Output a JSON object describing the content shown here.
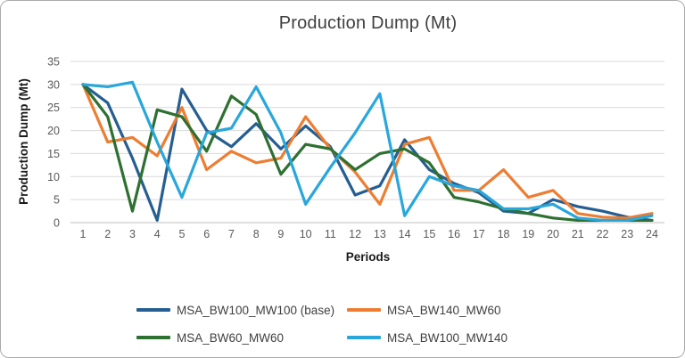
{
  "title": "Production Dump (Mt)",
  "x_axis": {
    "title": "Periods"
  },
  "y_axis": {
    "title": "Production Dump (Mt)"
  },
  "colors": {
    "gridline": "#d9d9d9",
    "axis_line": "#bfbfbf",
    "tick_label": "#595959"
  },
  "chart_data": {
    "type": "line",
    "title": "Production Dump (Mt)",
    "xlabel": "Periods",
    "ylabel": "Production Dump (Mt)",
    "x": [
      1,
      2,
      3,
      4,
      5,
      6,
      7,
      8,
      9,
      10,
      11,
      12,
      13,
      14,
      15,
      16,
      17,
      18,
      19,
      20,
      21,
      22,
      23,
      24
    ],
    "y_ticks": [
      0,
      5,
      10,
      15,
      20,
      25,
      30,
      35
    ],
    "ylim": [
      0,
      35
    ],
    "grid": true,
    "legend_position": "bottom",
    "series": [
      {
        "name": "MSA_BW100_MW100 (base)",
        "color": "#255e91",
        "values": [
          30,
          26,
          14,
          0.5,
          29,
          20,
          16.5,
          21.5,
          16,
          21,
          16.5,
          6,
          8,
          18,
          11.5,
          8.5,
          6.5,
          2.5,
          2,
          5,
          3.5,
          2.5,
          1.2,
          0.5
        ]
      },
      {
        "name": "MSA_BW140_MW60",
        "color": "#ed7d31",
        "values": [
          30,
          17.5,
          18.5,
          14.5,
          25,
          11.5,
          15.5,
          13,
          14,
          23,
          16,
          11,
          4,
          17,
          18.5,
          7,
          7,
          11.5,
          5.5,
          7,
          2,
          1.2,
          1,
          2
        ]
      },
      {
        "name": "MSA_BW60_MW60",
        "color": "#2e7031",
        "values": [
          30,
          23,
          2.5,
          24.5,
          23,
          15.5,
          27.5,
          23.5,
          10.5,
          17,
          16,
          11.5,
          15,
          16,
          13,
          5.5,
          4.5,
          3,
          2,
          1,
          0.5,
          0.5,
          0.5,
          0.5
        ]
      },
      {
        "name": "MSA_BW100_MW140",
        "color": "#29a7db",
        "values": [
          30,
          29.5,
          30.5,
          17.5,
          5.5,
          19.5,
          20.5,
          29.5,
          19.5,
          4,
          12,
          19.5,
          28,
          1.5,
          10,
          8,
          7,
          3,
          3,
          4,
          1,
          0.5,
          0.5,
          1.5
        ]
      }
    ]
  }
}
